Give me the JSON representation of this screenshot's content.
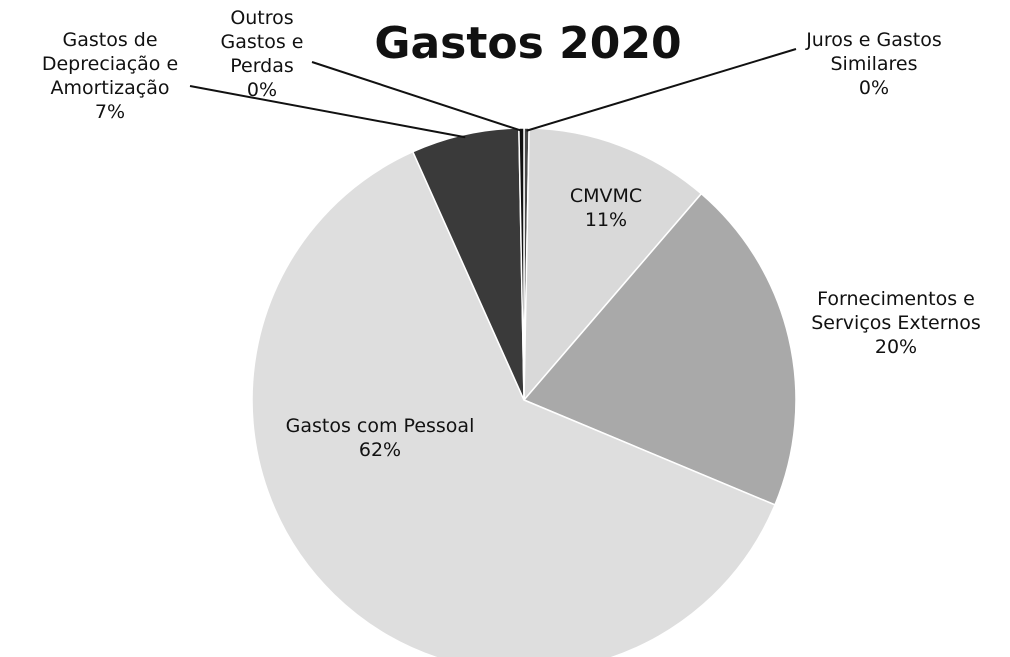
{
  "chart_data": {
    "type": "pie",
    "title": "Gastos 2020",
    "slices": [
      {
        "name": "Juros e Gastos Similares",
        "label_lines": [
          "Juros e Gastos",
          "Similares"
        ],
        "pct_label": "0%",
        "value": 0.3,
        "color": "#4a4a4a"
      },
      {
        "name": "CMVMC",
        "label_lines": [
          "CMVMC"
        ],
        "pct_label": "11%",
        "value": 11,
        "color": "#d9d9d9"
      },
      {
        "name": "Fornecimentos e Serviços Externos",
        "label_lines": [
          "Fornecimentos e",
          "Serviços Externos"
        ],
        "pct_label": "20%",
        "value": 20,
        "color": "#a9a9a9"
      },
      {
        "name": "Gastos com Pessoal",
        "label_lines": [
          "Gastos com Pessoal"
        ],
        "pct_label": "62%",
        "value": 62,
        "color": "#dedede"
      },
      {
        "name": "Gastos de Depreciação e Amortização",
        "label_lines": [
          "Gastos de",
          "Depreciação e",
          "Amortização"
        ],
        "pct_label": "7%",
        "value": 6.4,
        "color": "#3a3a3a"
      },
      {
        "name": "Outros Gastos e Perdas",
        "label_lines": [
          "Outros",
          "Gastos e",
          "Perdas"
        ],
        "pct_label": "0%",
        "value": 0.3,
        "color": "#111111"
      }
    ],
    "legend": "none",
    "start": "top, clockwise"
  }
}
